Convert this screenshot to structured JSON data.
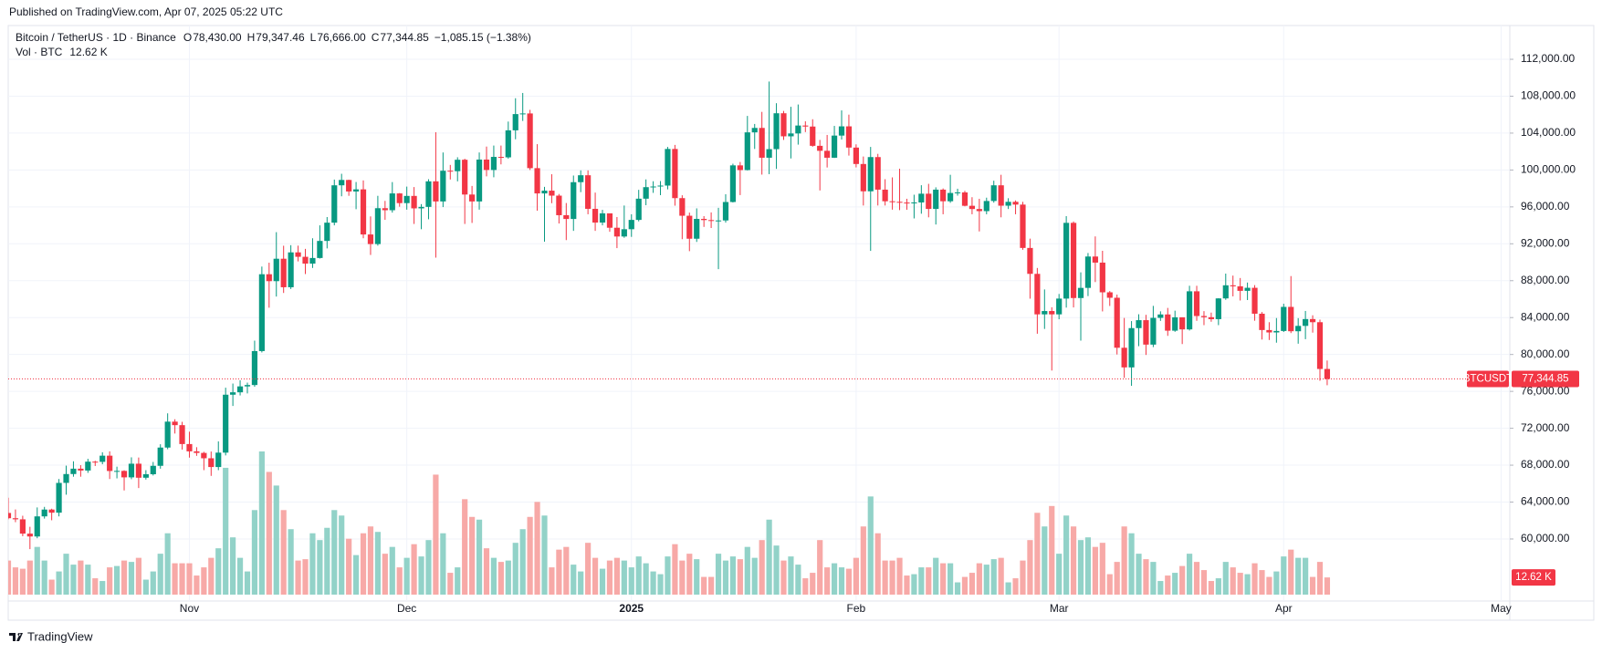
{
  "published": "Published on TradingView.com, Apr 07, 2025 05:22 UTC",
  "brand": "TradingView",
  "chart_data": {
    "type": "candlestick",
    "legend": {
      "symbol": "Bitcoin / TetherUS · 1D · Binance",
      "items": [
        {
          "key": "O",
          "value": "78,430.00"
        },
        {
          "key": "H",
          "value": "79,347.46"
        },
        {
          "key": "L",
          "value": "76,666.00"
        },
        {
          "key": "C",
          "value": "77,344.85"
        }
      ],
      "change": "−1,085.15 (−1.38%)",
      "vol_label": "Vol · BTC",
      "vol_value": "12.62 K"
    },
    "price_tag": {
      "symbol": "BTCUSDT",
      "label": "77,344.85"
    },
    "volume_tag": "12.62 K",
    "up_color": "#089981",
    "down_color": "#f23645",
    "volume_up_color": "#92d2c8",
    "volume_down_color": "#f7a9a7",
    "grid": true,
    "xlim": [
      0,
      207.2
    ],
    "xticks": [
      {
        "value": 25,
        "label": "Nov"
      },
      {
        "value": 55,
        "label": "Dec"
      },
      {
        "value": 86,
        "label": "2025"
      },
      {
        "value": 117,
        "label": "Feb"
      },
      {
        "value": 145,
        "label": "Mar"
      },
      {
        "value": 176,
        "label": "Apr"
      },
      {
        "value": 206,
        "label": "May"
      }
    ],
    "ylim": [
      53670,
      115660
    ],
    "yticks": [
      {
        "value": 60000,
        "label": "60,000.00"
      },
      {
        "value": 64000,
        "label": "64,000.00"
      },
      {
        "value": 68000,
        "label": "68,000.00"
      },
      {
        "value": 72000,
        "label": "72,000.00"
      },
      {
        "value": 76000,
        "label": "76,000.00"
      },
      {
        "value": 80000,
        "label": "80,000.00"
      },
      {
        "value": 84000,
        "label": "84,000.00"
      },
      {
        "value": 88000,
        "label": "88,000.00"
      },
      {
        "value": 92000,
        "label": "92,000.00"
      },
      {
        "value": 96000,
        "label": "96,000.00"
      },
      {
        "value": 100000,
        "label": "100,000.00"
      },
      {
        "value": 104000,
        "label": "104,000.00"
      },
      {
        "value": 108000,
        "label": "108,000.00"
      },
      {
        "value": 112000,
        "label": "112,000.00"
      }
    ],
    "candles": [
      [
        62820,
        64470,
        62130,
        62250
      ],
      [
        62250,
        63200,
        61820,
        62130
      ],
      [
        62130,
        62520,
        60300,
        60580
      ],
      [
        60580,
        61320,
        58900,
        60270
      ],
      [
        60270,
        63420,
        60080,
        62450
      ],
      [
        62450,
        63480,
        62210,
        63190
      ],
      [
        63190,
        63280,
        62030,
        62850
      ],
      [
        62850,
        66500,
        62450,
        66080
      ],
      [
        66080,
        67950,
        64800,
        67040
      ],
      [
        67040,
        68420,
        66750,
        67620
      ],
      [
        67620,
        68000,
        66750,
        67420
      ],
      [
        67420,
        68690,
        67170,
        68380
      ],
      [
        68380,
        68480,
        67910,
        68360
      ],
      [
        68360,
        69400,
        68100,
        69030
      ],
      [
        69030,
        69500,
        66500,
        67370
      ],
      [
        67370,
        67840,
        66570,
        67380
      ],
      [
        67380,
        67450,
        65260,
        66680
      ],
      [
        66680,
        68850,
        66480,
        68160
      ],
      [
        68160,
        68830,
        65520,
        66640
      ],
      [
        66640,
        67460,
        66440,
        67020
      ],
      [
        67020,
        68350,
        66880,
        67930
      ],
      [
        67930,
        70270,
        67620,
        69910
      ],
      [
        69910,
        73620,
        69730,
        72720
      ],
      [
        72720,
        72980,
        71430,
        72340
      ],
      [
        72340,
        72700,
        69690,
        70290
      ],
      [
        70290,
        71630,
        68820,
        69500
      ],
      [
        69500,
        69950,
        69010,
        69330
      ],
      [
        69330,
        69450,
        67460,
        68750
      ],
      [
        68750,
        69480,
        66840,
        67800
      ],
      [
        67800,
        70580,
        67460,
        69360
      ],
      [
        69360,
        76400,
        69060,
        75640
      ],
      [
        75640,
        76850,
        74420,
        75900
      ],
      [
        75900,
        77200,
        75560,
        76540
      ],
      [
        76540,
        76950,
        75780,
        76690
      ],
      [
        76690,
        81500,
        76500,
        80370
      ],
      [
        80370,
        89530,
        80220,
        88700
      ],
      [
        88700,
        89950,
        85070,
        87950
      ],
      [
        87950,
        93260,
        86280,
        90380
      ],
      [
        90380,
        91790,
        86670,
        87290
      ],
      [
        87290,
        91850,
        87100,
        91070
      ],
      [
        91070,
        91800,
        90090,
        90590
      ],
      [
        90590,
        91450,
        88720,
        89850
      ],
      [
        89850,
        92600,
        89380,
        90460
      ],
      [
        90460,
        94000,
        90400,
        92310
      ],
      [
        92310,
        94900,
        91500,
        94290
      ],
      [
        94290,
        98960,
        94000,
        98340
      ],
      [
        98340,
        99590,
        97150,
        98920
      ],
      [
        98920,
        98950,
        97200,
        97670
      ],
      [
        97670,
        98700,
        95750,
        97900
      ],
      [
        97900,
        98870,
        92600,
        93010
      ],
      [
        93010,
        94970,
        90790,
        91970
      ],
      [
        91970,
        97200,
        91800,
        95860
      ],
      [
        95860,
        96650,
        94600,
        95640
      ],
      [
        95640,
        98690,
        95380,
        97460
      ],
      [
        97460,
        97500,
        96020,
        96410
      ],
      [
        96410,
        98200,
        95700,
        97190
      ],
      [
        97190,
        98150,
        94150,
        95840
      ],
      [
        95840,
        96300,
        93580,
        96000
      ],
      [
        96000,
        99000,
        94660,
        98770
      ],
      [
        98770,
        104090,
        90500,
        96590
      ],
      [
        96590,
        101900,
        95980,
        99920
      ],
      [
        99920,
        100550,
        98970,
        99870
      ],
      [
        99870,
        101380,
        98770,
        101110
      ],
      [
        101110,
        101220,
        94150,
        97340
      ],
      [
        97340,
        98270,
        94260,
        96590
      ],
      [
        96590,
        101900,
        95700,
        101130
      ],
      [
        101130,
        102540,
        99310,
        100000
      ],
      [
        100000,
        102650,
        99210,
        101420
      ],
      [
        101420,
        102650,
        100610,
        101370
      ],
      [
        101370,
        105250,
        101230,
        104300
      ],
      [
        104300,
        107780,
        103330,
        106060
      ],
      [
        106060,
        108350,
        105320,
        106130
      ],
      [
        106130,
        106520,
        100000,
        100200
      ],
      [
        100200,
        102800,
        95590,
        97460
      ],
      [
        97460,
        98170,
        92230,
        97760
      ],
      [
        97760,
        99540,
        96400,
        97220
      ],
      [
        97220,
        97400,
        94200,
        95100
      ],
      [
        95100,
        96420,
        92400,
        94690
      ],
      [
        94690,
        99400,
        93400,
        98680
      ],
      [
        98680,
        99960,
        97600,
        99430
      ],
      [
        99430,
        99960,
        95200,
        95790
      ],
      [
        95790,
        97550,
        93400,
        94300
      ],
      [
        94300,
        95680,
        94000,
        95300
      ],
      [
        95300,
        95250,
        93300,
        93740
      ],
      [
        93740,
        94900,
        91530,
        92790
      ],
      [
        92790,
        96150,
        92650,
        93580
      ],
      [
        93580,
        95200,
        92750,
        94590
      ],
      [
        94590,
        97850,
        94430,
        96890
      ],
      [
        96890,
        98980,
        96180,
        98140
      ],
      [
        98140,
        98780,
        97520,
        98210
      ],
      [
        98210,
        98800,
        97270,
        98310
      ],
      [
        98310,
        102500,
        97900,
        102280
      ],
      [
        102280,
        102720,
        96130,
        96950
      ],
      [
        96950,
        97260,
        92500,
        95040
      ],
      [
        95040,
        95380,
        91200,
        92550
      ],
      [
        92550,
        95840,
        92200,
        94700
      ],
      [
        94700,
        95000,
        93830,
        94570
      ],
      [
        94570,
        95400,
        93710,
        94520
      ],
      [
        94520,
        95900,
        89250,
        94530
      ],
      [
        94530,
        97370,
        94300,
        96530
      ],
      [
        96530,
        100680,
        96480,
        100500
      ],
      [
        100500,
        100870,
        97280,
        99990
      ],
      [
        99990,
        105860,
        99950,
        104080
      ],
      [
        104080,
        104990,
        102280,
        104560
      ],
      [
        104560,
        106300,
        99500,
        101330
      ],
      [
        101330,
        109590,
        99550,
        102260
      ],
      [
        102260,
        107240,
        100120,
        106150
      ],
      [
        106150,
        106400,
        103260,
        103650
      ],
      [
        103650,
        106850,
        101250,
        103960
      ],
      [
        103960,
        107100,
        102750,
        104820
      ],
      [
        104820,
        105280,
        104110,
        104710
      ],
      [
        104710,
        105500,
        102520,
        102620
      ],
      [
        102620,
        103260,
        97780,
        102080
      ],
      [
        102080,
        103800,
        100270,
        101330
      ],
      [
        101330,
        104780,
        101300,
        103730
      ],
      [
        103730,
        106460,
        103300,
        104730
      ],
      [
        104730,
        106000,
        101560,
        102430
      ],
      [
        102430,
        102780,
        100280,
        100650
      ],
      [
        100650,
        101460,
        96150,
        97690
      ],
      [
        97690,
        102500,
        91230,
        101400
      ],
      [
        101400,
        101750,
        96150,
        97870
      ],
      [
        97870,
        99000,
        96150,
        96610
      ],
      [
        96610,
        99200,
        95700,
        96550
      ],
      [
        96550,
        100140,
        95650,
        96470
      ],
      [
        96470,
        96880,
        95690,
        96460
      ],
      [
        96460,
        97320,
        94750,
        96480
      ],
      [
        96480,
        98350,
        95260,
        97430
      ],
      [
        97430,
        98500,
        94870,
        95780
      ],
      [
        95780,
        98120,
        94090,
        97870
      ],
      [
        97870,
        98000,
        95200,
        96610
      ],
      [
        96610,
        99480,
        96440,
        97510
      ],
      [
        97510,
        97970,
        97220,
        97570
      ],
      [
        97570,
        97740,
        96060,
        96120
      ],
      [
        96120,
        97050,
        95200,
        95770
      ],
      [
        95770,
        96880,
        93340,
        95540
      ],
      [
        95540,
        97000,
        95200,
        96640
      ],
      [
        96640,
        98840,
        96460,
        98340
      ],
      [
        98340,
        99480,
        94870,
        96130
      ],
      [
        96130,
        96940,
        95770,
        96550
      ],
      [
        96550,
        96700,
        95200,
        96250
      ],
      [
        96250,
        96550,
        91350,
        91550
      ],
      [
        91550,
        92560,
        86050,
        88740
      ],
      [
        88740,
        89380,
        82250,
        84350
      ],
      [
        84350,
        87050,
        82770,
        84710
      ],
      [
        84710,
        85120,
        78260,
        84350
      ],
      [
        84350,
        86560,
        83820,
        86060
      ],
      [
        86060,
        95000,
        85080,
        94270
      ],
      [
        94270,
        94420,
        85100,
        86120
      ],
      [
        86120,
        88900,
        81500,
        87220
      ],
      [
        87220,
        91000,
        86330,
        90620
      ],
      [
        90620,
        92800,
        87850,
        89960
      ],
      [
        89960,
        91240,
        84670,
        86740
      ],
      [
        86740,
        86880,
        85260,
        86150
      ],
      [
        86150,
        86490,
        80000,
        80730
      ],
      [
        80730,
        83960,
        77460,
        78600
      ],
      [
        78600,
        83620,
        76600,
        82860
      ],
      [
        82860,
        84360,
        80900,
        83720
      ],
      [
        83720,
        84300,
        79950,
        81070
      ],
      [
        81070,
        85270,
        80800,
        83970
      ],
      [
        83970,
        84680,
        83640,
        84340
      ],
      [
        84340,
        85050,
        82020,
        82580
      ],
      [
        82580,
        84750,
        82460,
        84030
      ],
      [
        84030,
        84030,
        81130,
        82720
      ],
      [
        82720,
        87450,
        82600,
        86850
      ],
      [
        86850,
        87450,
        83650,
        84170
      ],
      [
        84170,
        84700,
        83180,
        84040
      ],
      [
        84040,
        84540,
        83550,
        83830
      ],
      [
        83830,
        86100,
        83180,
        86080
      ],
      [
        86080,
        88770,
        85930,
        87500
      ],
      [
        87500,
        88550,
        86300,
        87390
      ],
      [
        87390,
        88290,
        85850,
        86900
      ],
      [
        86900,
        87800,
        85900,
        87230
      ],
      [
        87230,
        87520,
        83660,
        84420
      ],
      [
        84420,
        84600,
        81620,
        82650
      ],
      [
        82650,
        83500,
        81570,
        82390
      ],
      [
        82390,
        83950,
        81280,
        82550
      ],
      [
        82550,
        85500,
        82440,
        85160
      ],
      [
        85160,
        88500,
        82320,
        82520
      ],
      [
        82520,
        83940,
        81170,
        83100
      ],
      [
        83100,
        84720,
        81660,
        83840
      ],
      [
        83840,
        84250,
        82370,
        83500
      ],
      [
        83500,
        83780,
        77150,
        78430
      ],
      [
        78430,
        79347.46,
        76666,
        77344.85
      ]
    ],
    "volume": [
      25000,
      20000,
      19000,
      25000,
      35000,
      25000,
      11000,
      17000,
      30000,
      22000,
      25000,
      22000,
      12000,
      10000,
      20000,
      21000,
      25000,
      24000,
      27000,
      11000,
      17000,
      30000,
      45000,
      23000,
      23000,
      23000,
      14000,
      20000,
      27000,
      34000,
      93000,
      42000,
      27000,
      17000,
      62000,
      105000,
      90000,
      80000,
      62000,
      48000,
      25000,
      26000,
      45000,
      40000,
      49000,
      62000,
      58000,
      41000,
      29000,
      45000,
      50000,
      46000,
      30000,
      35000,
      20000,
      27000,
      37000,
      28000,
      40000,
      88000,
      45000,
      16000,
      20000,
      70000,
      57000,
      55000,
      34000,
      27000,
      24000,
      25000,
      38000,
      48000,
      57000,
      68000,
      58000,
      20000,
      33000,
      35000,
      22000,
      17000,
      38000,
      27000,
      19000,
      25000,
      27000,
      25000,
      20000,
      28000,
      23000,
      17000,
      15000,
      28000,
      37000,
      25000,
      30000,
      26000,
      13000,
      13000,
      30000,
      25000,
      28000,
      26000,
      35000,
      27000,
      40000,
      55000,
      36000,
      25000,
      28000,
      22000,
      12000,
      16000,
      40000,
      20000,
      23000,
      20000,
      19000,
      27000,
      50000,
      72000,
      45000,
      25000,
      25000,
      27000,
      14000,
      15000,
      20000,
      20000,
      27000,
      23000,
      23000,
      9000,
      13000,
      16000,
      23000,
      22000,
      26000,
      27000,
      9000,
      12000,
      25000,
      40000,
      60000,
      50000,
      65000,
      30000,
      58000,
      50000,
      40000,
      42000,
      35000,
      38000,
      15000,
      24000,
      50000,
      45000,
      30000,
      26000,
      24000,
      10000,
      14000,
      16000,
      21000,
      30000,
      24000,
      18000,
      10000,
      12000,
      24000,
      20000,
      16000,
      15000,
      23000,
      18000,
      13000,
      17000,
      28000,
      33000,
      27000,
      27000,
      13000,
      24000,
      12620
    ]
  }
}
